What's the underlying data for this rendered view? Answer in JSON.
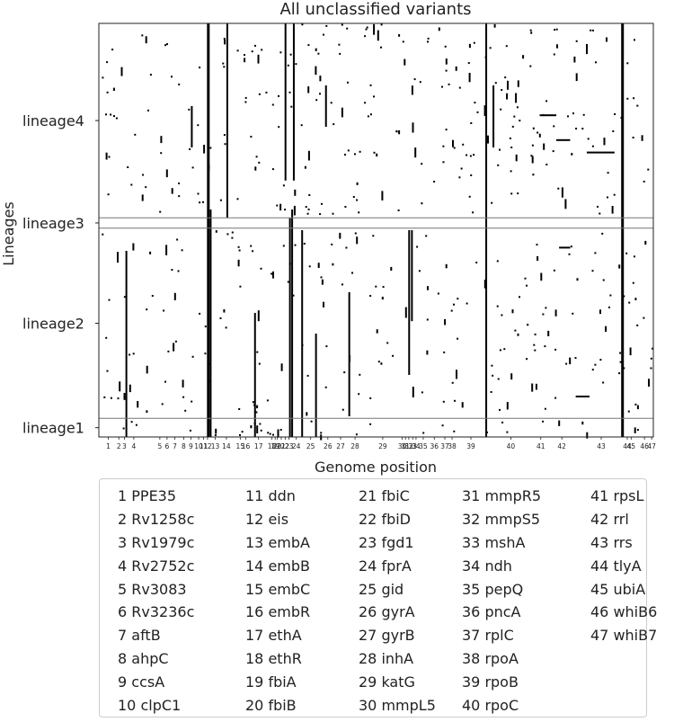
{
  "chart_data": {
    "type": "heatmap",
    "title": "All unclassified variants",
    "xlabel": "Genome position",
    "ylabel": "Lineages",
    "rows": [
      "lineage4",
      "lineage3",
      "lineage2",
      "lineage1"
    ],
    "row_bands": [
      {
        "name": "lineage4",
        "start": 0.0,
        "end": 0.47
      },
      {
        "name": "lineage3",
        "start": 0.47,
        "end": 0.495
      },
      {
        "name": "lineage2",
        "start": 0.495,
        "end": 0.955
      },
      {
        "name": "lineage1",
        "start": 0.955,
        "end": 1.0
      }
    ],
    "genes": [
      "PPE35",
      "Rv1258c",
      "Rv1979c",
      "Rv2752c",
      "Rv3083",
      "Rv3236c",
      "aftB",
      "ahpC",
      "ccsA",
      "clpC1",
      "ddn",
      "eis",
      "embA",
      "embB",
      "embC",
      "embR",
      "ethA",
      "ethR",
      "fbiA",
      "fbiB",
      "fbiC",
      "fbiD",
      "fgd1",
      "fprA",
      "gid",
      "gyrA",
      "gyrB",
      "inhA",
      "katG",
      "mmpL5",
      "mmpR5",
      "mmpS5",
      "mshA",
      "ndh",
      "pepQ",
      "pncA",
      "rplC",
      "rpoA",
      "rpoB",
      "rpoC",
      "rpsL",
      "rrl",
      "rrs",
      "tlyA",
      "ubiA",
      "whiB6",
      "whiB7"
    ],
    "gene_ticks": [
      {
        "n": 1,
        "pos": 0.017
      },
      {
        "n": 2,
        "pos": 0.036
      },
      {
        "n": 3,
        "pos": 0.046
      },
      {
        "n": 4,
        "pos": 0.063
      },
      {
        "n": 5,
        "pos": 0.11
      },
      {
        "n": 6,
        "pos": 0.123
      },
      {
        "n": 7,
        "pos": 0.137
      },
      {
        "n": 8,
        "pos": 0.153
      },
      {
        "n": 9,
        "pos": 0.166
      },
      {
        "n": 10,
        "pos": 0.18
      },
      {
        "n": 11,
        "pos": 0.189
      },
      {
        "n": 12,
        "pos": 0.196
      },
      {
        "n": 13,
        "pos": 0.21
      },
      {
        "n": 14,
        "pos": 0.23
      },
      {
        "n": 15,
        "pos": 0.255
      },
      {
        "n": 16,
        "pos": 0.265
      },
      {
        "n": 17,
        "pos": 0.288
      },
      {
        "n": 18,
        "pos": 0.312
      },
      {
        "n": 19,
        "pos": 0.318
      },
      {
        "n": 20,
        "pos": 0.322
      },
      {
        "n": 21,
        "pos": 0.329
      },
      {
        "n": 22,
        "pos": 0.336
      },
      {
        "n": 23,
        "pos": 0.343
      },
      {
        "n": 24,
        "pos": 0.356
      },
      {
        "n": 25,
        "pos": 0.382
      },
      {
        "n": 26,
        "pos": 0.413
      },
      {
        "n": 27,
        "pos": 0.436
      },
      {
        "n": 28,
        "pos": 0.462
      },
      {
        "n": 29,
        "pos": 0.512
      },
      {
        "n": 30,
        "pos": 0.547
      },
      {
        "n": 31,
        "pos": 0.553
      },
      {
        "n": 32,
        "pos": 0.559
      },
      {
        "n": 33,
        "pos": 0.566
      },
      {
        "n": 34,
        "pos": 0.572
      },
      {
        "n": 35,
        "pos": 0.585
      },
      {
        "n": 36,
        "pos": 0.605
      },
      {
        "n": 37,
        "pos": 0.624
      },
      {
        "n": 38,
        "pos": 0.637
      },
      {
        "n": 39,
        "pos": 0.671
      },
      {
        "n": 40,
        "pos": 0.743
      },
      {
        "n": 41,
        "pos": 0.797
      },
      {
        "n": 42,
        "pos": 0.835
      },
      {
        "n": 43,
        "pos": 0.906
      },
      {
        "n": 44,
        "pos": 0.953
      },
      {
        "n": 45,
        "pos": 0.96
      },
      {
        "n": 46,
        "pos": 0.984
      },
      {
        "n": 47,
        "pos": 0.997
      }
    ],
    "grid": false,
    "legend_position": "below"
  },
  "legend": {
    "items": [
      "1 PPE35",
      "2 Rv1258c",
      "3 Rv1979c",
      "4 Rv2752c",
      "5 Rv3083",
      "6 Rv3236c",
      "7 aftB",
      "8 ahpC",
      "9 ccsA",
      "10 clpC1",
      "11 ddn",
      "12 eis",
      "13 embA",
      "14 embB",
      "15 embC",
      "16 embR",
      "17 ethA",
      "18 ethR",
      "19 fbiA",
      "20 fbiB",
      "21 fbiC",
      "22 fbiD",
      "23 fgd1",
      "24 fprA",
      "25 gid",
      "26 gyrA",
      "27 gyrB",
      "28 inhA",
      "29 katG",
      "30 mmpL5",
      "31 mmpR5",
      "32 mmpS5",
      "33 mshA",
      "34 ndh",
      "35 pepQ",
      "36 pncA",
      "37 rplC",
      "38 rpoA",
      "39 rpoB",
      "40 rpoC",
      "41 rpsL",
      "42 rrl",
      "43 rrs",
      "44 tlyA",
      "45 ubiA",
      "46 whiB6",
      "47 whiB7"
    ]
  },
  "colors": {
    "mark": "#000000",
    "band_line": "#777777",
    "axis": "#222222",
    "legend_border": "#cccccc"
  }
}
